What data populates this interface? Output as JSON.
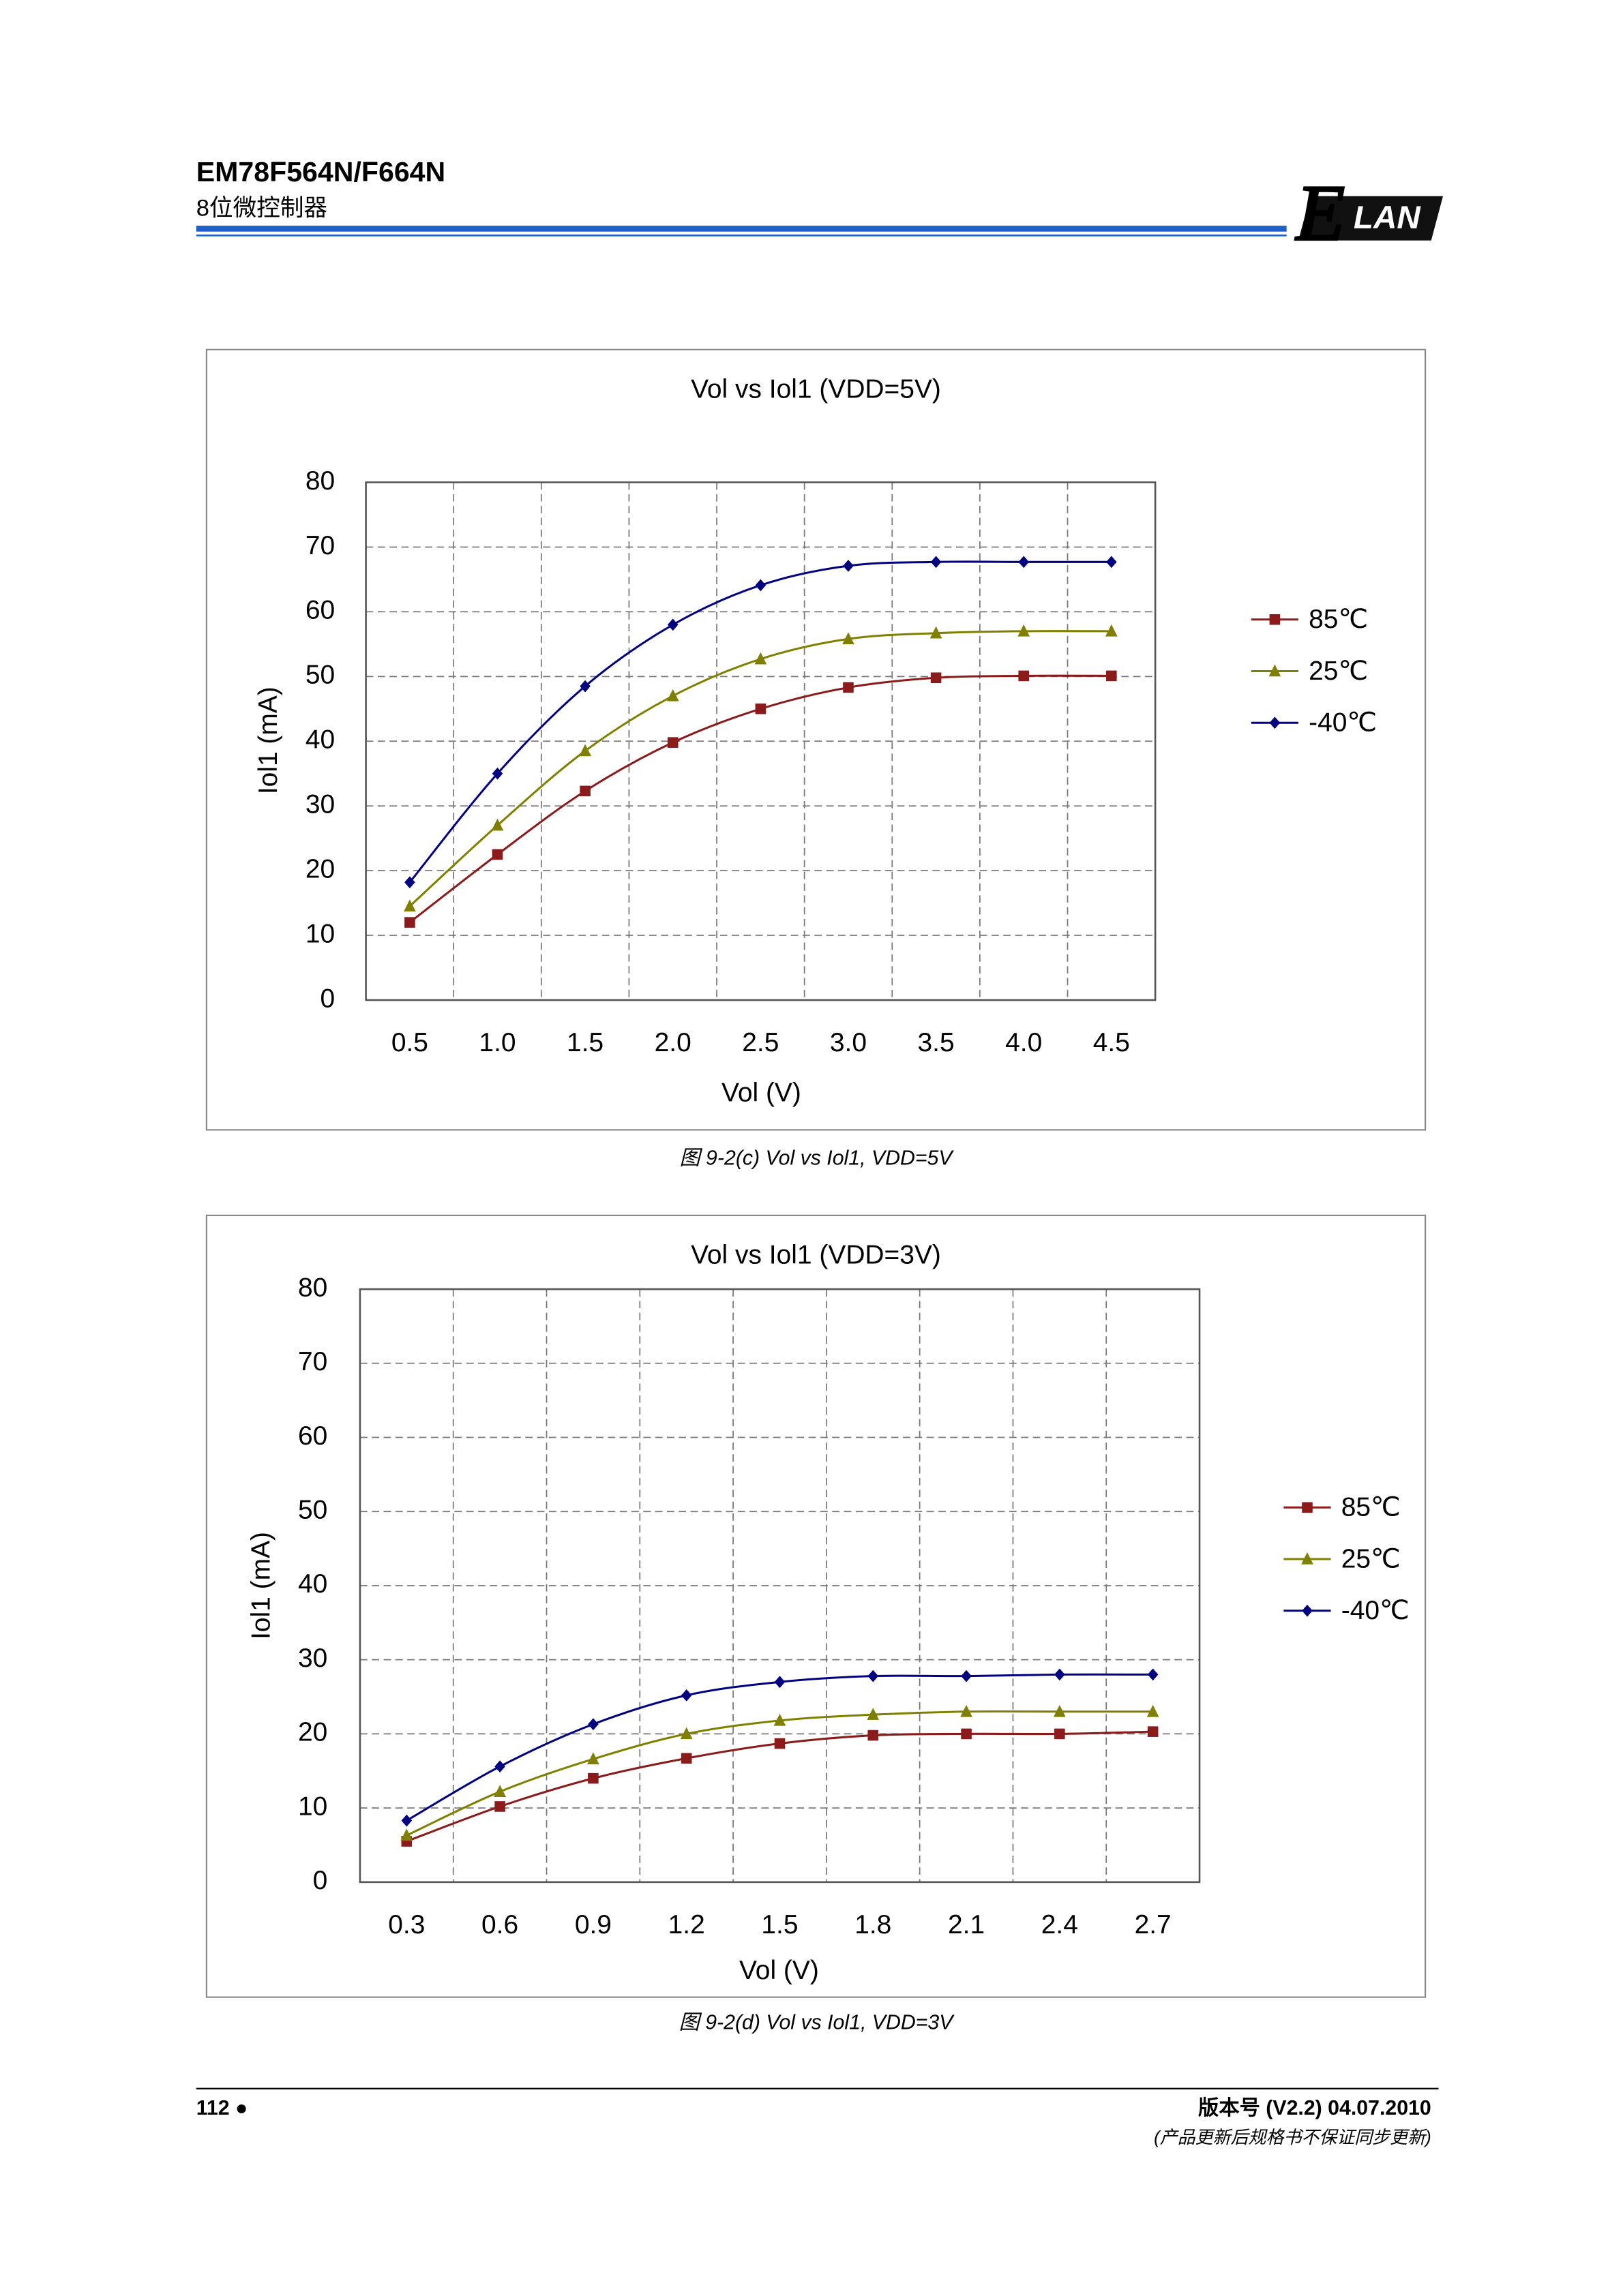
{
  "header": {
    "title": "EM78F564N/F664N",
    "subtitle": "8位微控制器",
    "logo": {
      "initial": "E",
      "text": "LAN"
    }
  },
  "chart_data": [
    {
      "type": "line",
      "title": "Vol vs Iol1 (VDD=5V)",
      "x_label": "Vol (V)",
      "y_label": "Iol1 (mA)",
      "categories": [
        "0.5",
        "1.0",
        "1.5",
        "2.0",
        "2.5",
        "3.0",
        "3.5",
        "4.0",
        "4.5"
      ],
      "ylim": [
        0,
        80
      ],
      "yticks": [
        0,
        10,
        20,
        30,
        40,
        50,
        60,
        70,
        80
      ],
      "grid": true,
      "legend": "right",
      "series": [
        {
          "name": "85℃",
          "color": "#8b1a1a",
          "marker": "square",
          "values": [
            12,
            22.5,
            32.3,
            39.8,
            45,
            48.3,
            49.8,
            50.1,
            50.1
          ]
        },
        {
          "name": "25℃",
          "color": "#808000",
          "marker": "triangle",
          "values": [
            14.5,
            27,
            38.5,
            47,
            52.7,
            55.8,
            56.7,
            57,
            57
          ]
        },
        {
          "name": "-40℃",
          "color": "#000080",
          "marker": "diamond",
          "values": [
            18.2,
            35,
            48.5,
            58,
            64.1,
            67.1,
            67.7,
            67.7,
            67.7
          ]
        }
      ],
      "caption": "图 9-2(c) Vol vs Iol1, VDD=5V"
    },
    {
      "type": "line",
      "title": "Vol vs Iol1 (VDD=3V)",
      "x_label": "Vol (V)",
      "y_label": "Iol1 (mA)",
      "categories": [
        "0.3",
        "0.6",
        "0.9",
        "1.2",
        "1.5",
        "1.8",
        "2.1",
        "2.4",
        "2.7"
      ],
      "ylim": [
        0,
        80
      ],
      "yticks": [
        0,
        10,
        20,
        30,
        40,
        50,
        60,
        70,
        80
      ],
      "grid": true,
      "legend": "right",
      "series": [
        {
          "name": "85℃",
          "color": "#8b1a1a",
          "marker": "square",
          "values": [
            5.5,
            10.2,
            14,
            16.7,
            18.7,
            19.8,
            20,
            20,
            20.3
          ]
        },
        {
          "name": "25℃",
          "color": "#808000",
          "marker": "triangle",
          "values": [
            6.3,
            12.2,
            16.6,
            20,
            21.8,
            22.6,
            23,
            23,
            23
          ]
        },
        {
          "name": "-40℃",
          "color": "#000080",
          "marker": "diamond",
          "values": [
            8.3,
            15.6,
            21.3,
            25.2,
            27,
            27.8,
            27.8,
            28,
            28
          ]
        }
      ],
      "caption": "图 9-2(d) Vol vs Iol1, VDD=3V"
    }
  ],
  "footer": {
    "page": "112 ●",
    "version": "版本号 (V2.2) 04.07.2010",
    "note": "(产品更新后规格书不保证同步更新)"
  }
}
